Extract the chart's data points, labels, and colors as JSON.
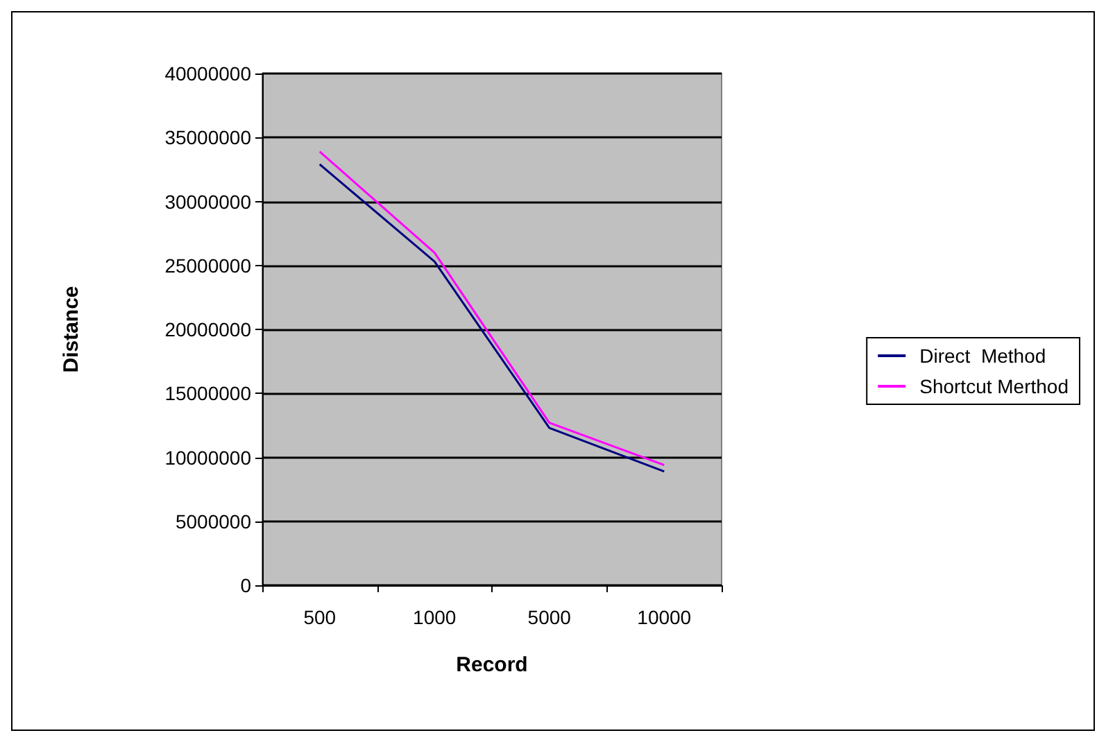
{
  "chart_data": {
    "type": "line",
    "xlabel": "Record",
    "ylabel": "Distance",
    "categories": [
      "500",
      "1000",
      "5000",
      "10000"
    ],
    "series": [
      {
        "name": "Direct  Method",
        "color": "#000080",
        "values": [
          32900000,
          25300000,
          12300000,
          8900000
        ]
      },
      {
        "name": "Shortcut Merthod",
        "color": "#ff00ff",
        "values": [
          33900000,
          26000000,
          12700000,
          9400000
        ]
      }
    ],
    "ylim": [
      0,
      40000000
    ],
    "yticks": [
      0,
      5000000,
      10000000,
      15000000,
      20000000,
      25000000,
      30000000,
      35000000,
      40000000
    ],
    "grid": "y",
    "legend": "right",
    "marker": "none",
    "line_style": "solid"
  }
}
